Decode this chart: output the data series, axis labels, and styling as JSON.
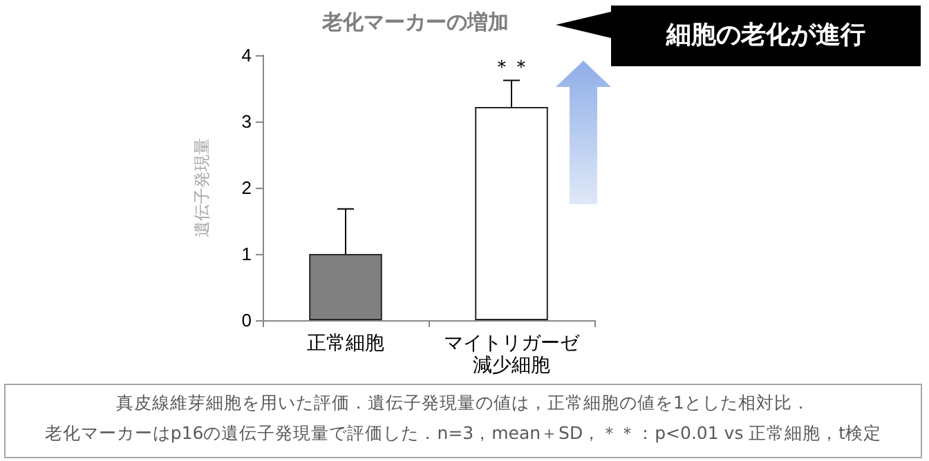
{
  "chart_data": {
    "type": "bar",
    "title": "老化マーカーの増加",
    "ylabel": "遺伝子発現量",
    "categories": [
      "正常細胞",
      "マイトリガーゼ減少細胞"
    ],
    "values": [
      1.0,
      3.22
    ],
    "colors": [
      "#808080",
      "#ffffff"
    ],
    "errors": [
      [
        1.0,
        1.68
      ],
      [
        3.22,
        3.62
      ]
    ],
    "ylim": [
      0,
      4
    ],
    "yticks": [
      0,
      1,
      2,
      3,
      4
    ],
    "grid": false,
    "annotations": [
      "細胞の老化が進行",
      "＊＊",
      "真皮線維芽細胞を用いた評価．遺伝子発現量の値は，正常細胞の値を1とした相対比．",
      "老化マーカーはp16の遺伝子発現量で評価した．n=3，mean＋SD，＊＊：p<0.01 vs 正常細胞，t検定"
    ]
  }
}
